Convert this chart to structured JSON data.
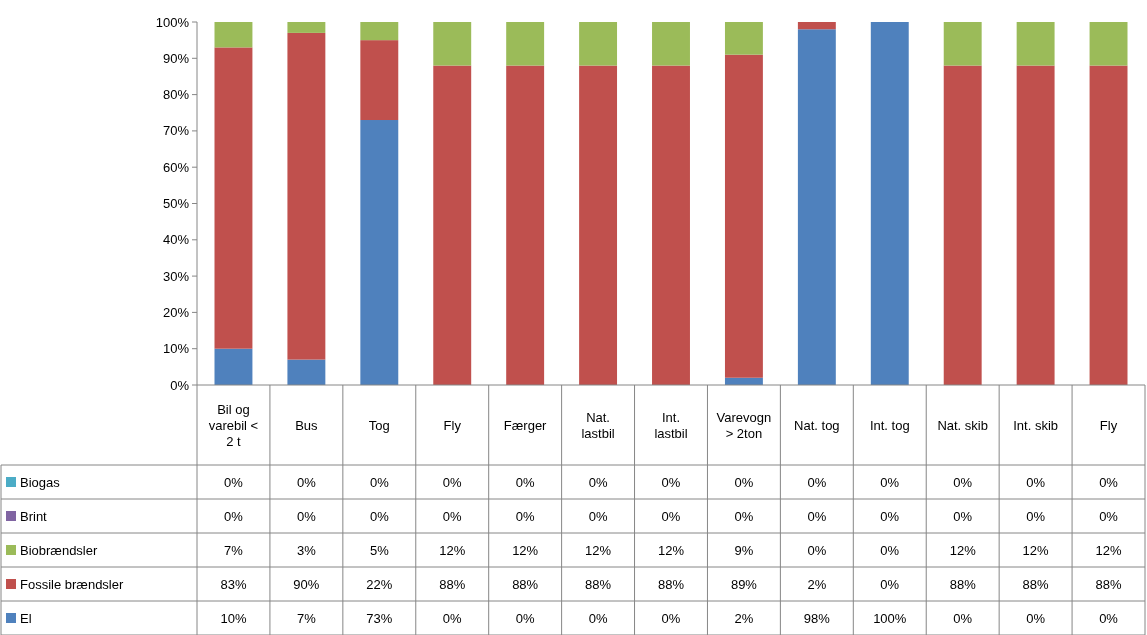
{
  "chart_data": {
    "type": "bar",
    "stacked": true,
    "categories": [
      "Bil og varebil < 2 t",
      "Bus",
      "Tog",
      "Fly",
      "Færger",
      "Nat. lastbil",
      "Int. lastbil",
      "Varevogn > 2ton",
      "Nat. tog",
      "Int. tog",
      "Nat. skib",
      "Int. skib",
      "Fly"
    ],
    "ylim": [
      0,
      100
    ],
    "yticks": [
      {
        "value": 0,
        "label": "0%"
      },
      {
        "value": 10,
        "label": "10%"
      },
      {
        "value": 20,
        "label": "20%"
      },
      {
        "value": 30,
        "label": "30%"
      },
      {
        "value": 40,
        "label": "40%"
      },
      {
        "value": 50,
        "label": "50%"
      },
      {
        "value": 60,
        "label": "60%"
      },
      {
        "value": 70,
        "label": "70%"
      },
      {
        "value": 80,
        "label": "80%"
      },
      {
        "value": 90,
        "label": "90%"
      },
      {
        "value": 100,
        "label": "100%"
      }
    ],
    "legend": "bottom left",
    "series": [
      {
        "name": "El",
        "color": "#4f81bd",
        "values": [
          10,
          7,
          73,
          0,
          0,
          0,
          0,
          2,
          98,
          100,
          0,
          0,
          0
        ],
        "value_labels": [
          "10%",
          "7%",
          "73%",
          "0%",
          "0%",
          "0%",
          "0%",
          "2%",
          "98%",
          "100%",
          "0%",
          "0%",
          "0%"
        ]
      },
      {
        "name": "Fossile brændsler",
        "color": "#c0504d",
        "values": [
          83,
          90,
          22,
          88,
          88,
          88,
          88,
          89,
          2,
          0,
          88,
          88,
          88
        ],
        "value_labels": [
          "83%",
          "90%",
          "22%",
          "88%",
          "88%",
          "88%",
          "88%",
          "89%",
          "2%",
          "0%",
          "88%",
          "88%",
          "88%"
        ]
      },
      {
        "name": "Biobrændsler",
        "color": "#9bbb59",
        "values": [
          7,
          3,
          5,
          12,
          12,
          12,
          12,
          9,
          0,
          0,
          12,
          12,
          12
        ],
        "value_labels": [
          "7%",
          "3%",
          "5%",
          "12%",
          "12%",
          "12%",
          "12%",
          "9%",
          "0%",
          "0%",
          "12%",
          "12%",
          "12%"
        ]
      },
      {
        "name": "Brint",
        "color": "#8064a2",
        "values": [
          0,
          0,
          0,
          0,
          0,
          0,
          0,
          0,
          0,
          0,
          0,
          0,
          0
        ],
        "value_labels": [
          "0%",
          "0%",
          "0%",
          "0%",
          "0%",
          "0%",
          "0%",
          "0%",
          "0%",
          "0%",
          "0%",
          "0%",
          "0%"
        ]
      },
      {
        "name": "Biogas",
        "color": "#4bacc6",
        "values": [
          0,
          0,
          0,
          0,
          0,
          0,
          0,
          0,
          0,
          0,
          0,
          0,
          0
        ],
        "value_labels": [
          "0%",
          "0%",
          "0%",
          "0%",
          "0%",
          "0%",
          "0%",
          "0%",
          "0%",
          "0%",
          "0%",
          "0%",
          "0%"
        ]
      }
    ]
  }
}
